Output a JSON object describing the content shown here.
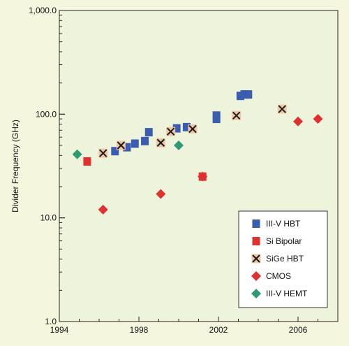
{
  "colors": {
    "page_bg": "#f6f5de",
    "plot_bg": "#eef4dc",
    "iii_v_hbt": "#3a5db0",
    "si_bipolar": "#e03030",
    "sige_hbt_fill": "#efc7a5",
    "sige_hbt_mark": "#1a1a1a",
    "cmos": "#e03030",
    "iii_v_hemt": "#2e9c70"
  },
  "chart_data": {
    "type": "scatter",
    "title": "",
    "xlabel": "",
    "ylabel": "Divider Frequency (GHz)",
    "yscale": "log",
    "xlim": [
      1994,
      2008
    ],
    "ylim": [
      1.0,
      1000.0
    ],
    "xticks": [
      1994,
      1998,
      2002,
      2006
    ],
    "xtick_labels": [
      "1994",
      "1998",
      "2002",
      "2006"
    ],
    "yticks": [
      1.0,
      10.0,
      100.0,
      1000.0
    ],
    "ytick_labels": [
      "1.0",
      "10.0",
      "100.0",
      "1,000.0"
    ],
    "grid": false,
    "legend_position": "bottom-right",
    "series": [
      {
        "name": "III-V HBT",
        "marker": "square",
        "points": [
          {
            "x": 1996.8,
            "y": 44
          },
          {
            "x": 1997.4,
            "y": 48
          },
          {
            "x": 1997.8,
            "y": 52
          },
          {
            "x": 1998.3,
            "y": 55
          },
          {
            "x": 1998.5,
            "y": 67
          },
          {
            "x": 1999.9,
            "y": 73
          },
          {
            "x": 2000.4,
            "y": 75
          },
          {
            "x": 2001.9,
            "y": 90
          },
          {
            "x": 2001.9,
            "y": 97
          },
          {
            "x": 2003.1,
            "y": 150
          },
          {
            "x": 2003.3,
            "y": 155
          },
          {
            "x": 2003.5,
            "y": 155
          }
        ]
      },
      {
        "name": "Si Bipolar",
        "marker": "square",
        "points": [
          {
            "x": 1995.4,
            "y": 35
          },
          {
            "x": 2001.2,
            "y": 25
          }
        ]
      },
      {
        "name": "SiGe HBT",
        "marker": "square-x",
        "points": [
          {
            "x": 1996.2,
            "y": 42
          },
          {
            "x": 1997.1,
            "y": 50
          },
          {
            "x": 1999.1,
            "y": 53
          },
          {
            "x": 1999.6,
            "y": 68
          },
          {
            "x": 2000.7,
            "y": 72
          },
          {
            "x": 2002.9,
            "y": 97
          },
          {
            "x": 2005.2,
            "y": 112
          }
        ]
      },
      {
        "name": "CMOS",
        "marker": "diamond",
        "points": [
          {
            "x": 1996.2,
            "y": 12
          },
          {
            "x": 1999.1,
            "y": 17
          },
          {
            "x": 2001.2,
            "y": 25
          },
          {
            "x": 2006.0,
            "y": 85
          },
          {
            "x": 2007.0,
            "y": 90
          }
        ]
      },
      {
        "name": "III-V HEMT",
        "marker": "diamond",
        "points": [
          {
            "x": 1994.9,
            "y": 41
          },
          {
            "x": 2000.0,
            "y": 50
          }
        ]
      }
    ]
  }
}
